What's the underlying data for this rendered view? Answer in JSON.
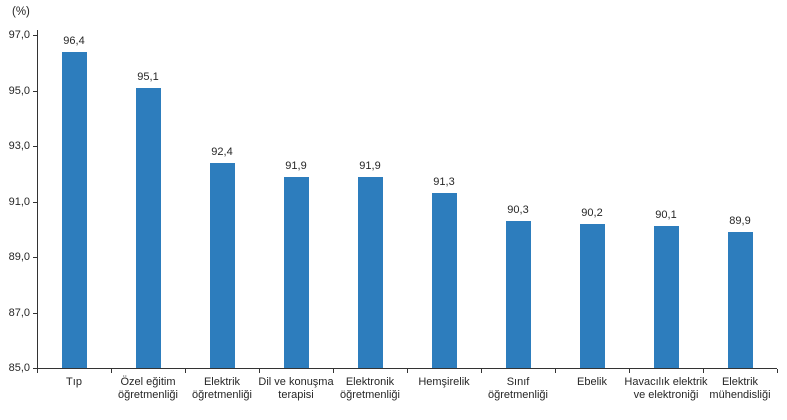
{
  "chart_data": {
    "type": "bar",
    "title": "",
    "unit_label": "(%)",
    "categories": [
      "Tıp",
      "Özel eğitim öğretmenliği",
      "Elektrik öğretmenliği",
      "Dil ve konuşma terapisi",
      "Elektronik öğretmenliği",
      "Hemşirelik",
      "Sınıf öğretmenliği",
      "Ebelik",
      "Havacılık elektrik ve elektroniği",
      "Elektrik mühendisliği"
    ],
    "values": [
      96.4,
      95.1,
      92.4,
      91.9,
      91.9,
      91.3,
      90.3,
      90.2,
      90.1,
      89.9
    ],
    "value_labels": [
      "96,4",
      "95,1",
      "92,4",
      "91,9",
      "91,9",
      "91,3",
      "90,3",
      "90,2",
      "90,1",
      "89,9"
    ],
    "ylim": [
      85,
      97
    ],
    "ytick_values": [
      97,
      95,
      93,
      91,
      89,
      87,
      85
    ],
    "ytick_labels": [
      "97,0",
      "95,0",
      "93,0",
      "91,0",
      "89,0",
      "87,0",
      "85,0"
    ],
    "grid": false,
    "legend": "none",
    "bar_color": "#2d7dbd",
    "axis_color": "#333333",
    "text_color": "#262626"
  }
}
